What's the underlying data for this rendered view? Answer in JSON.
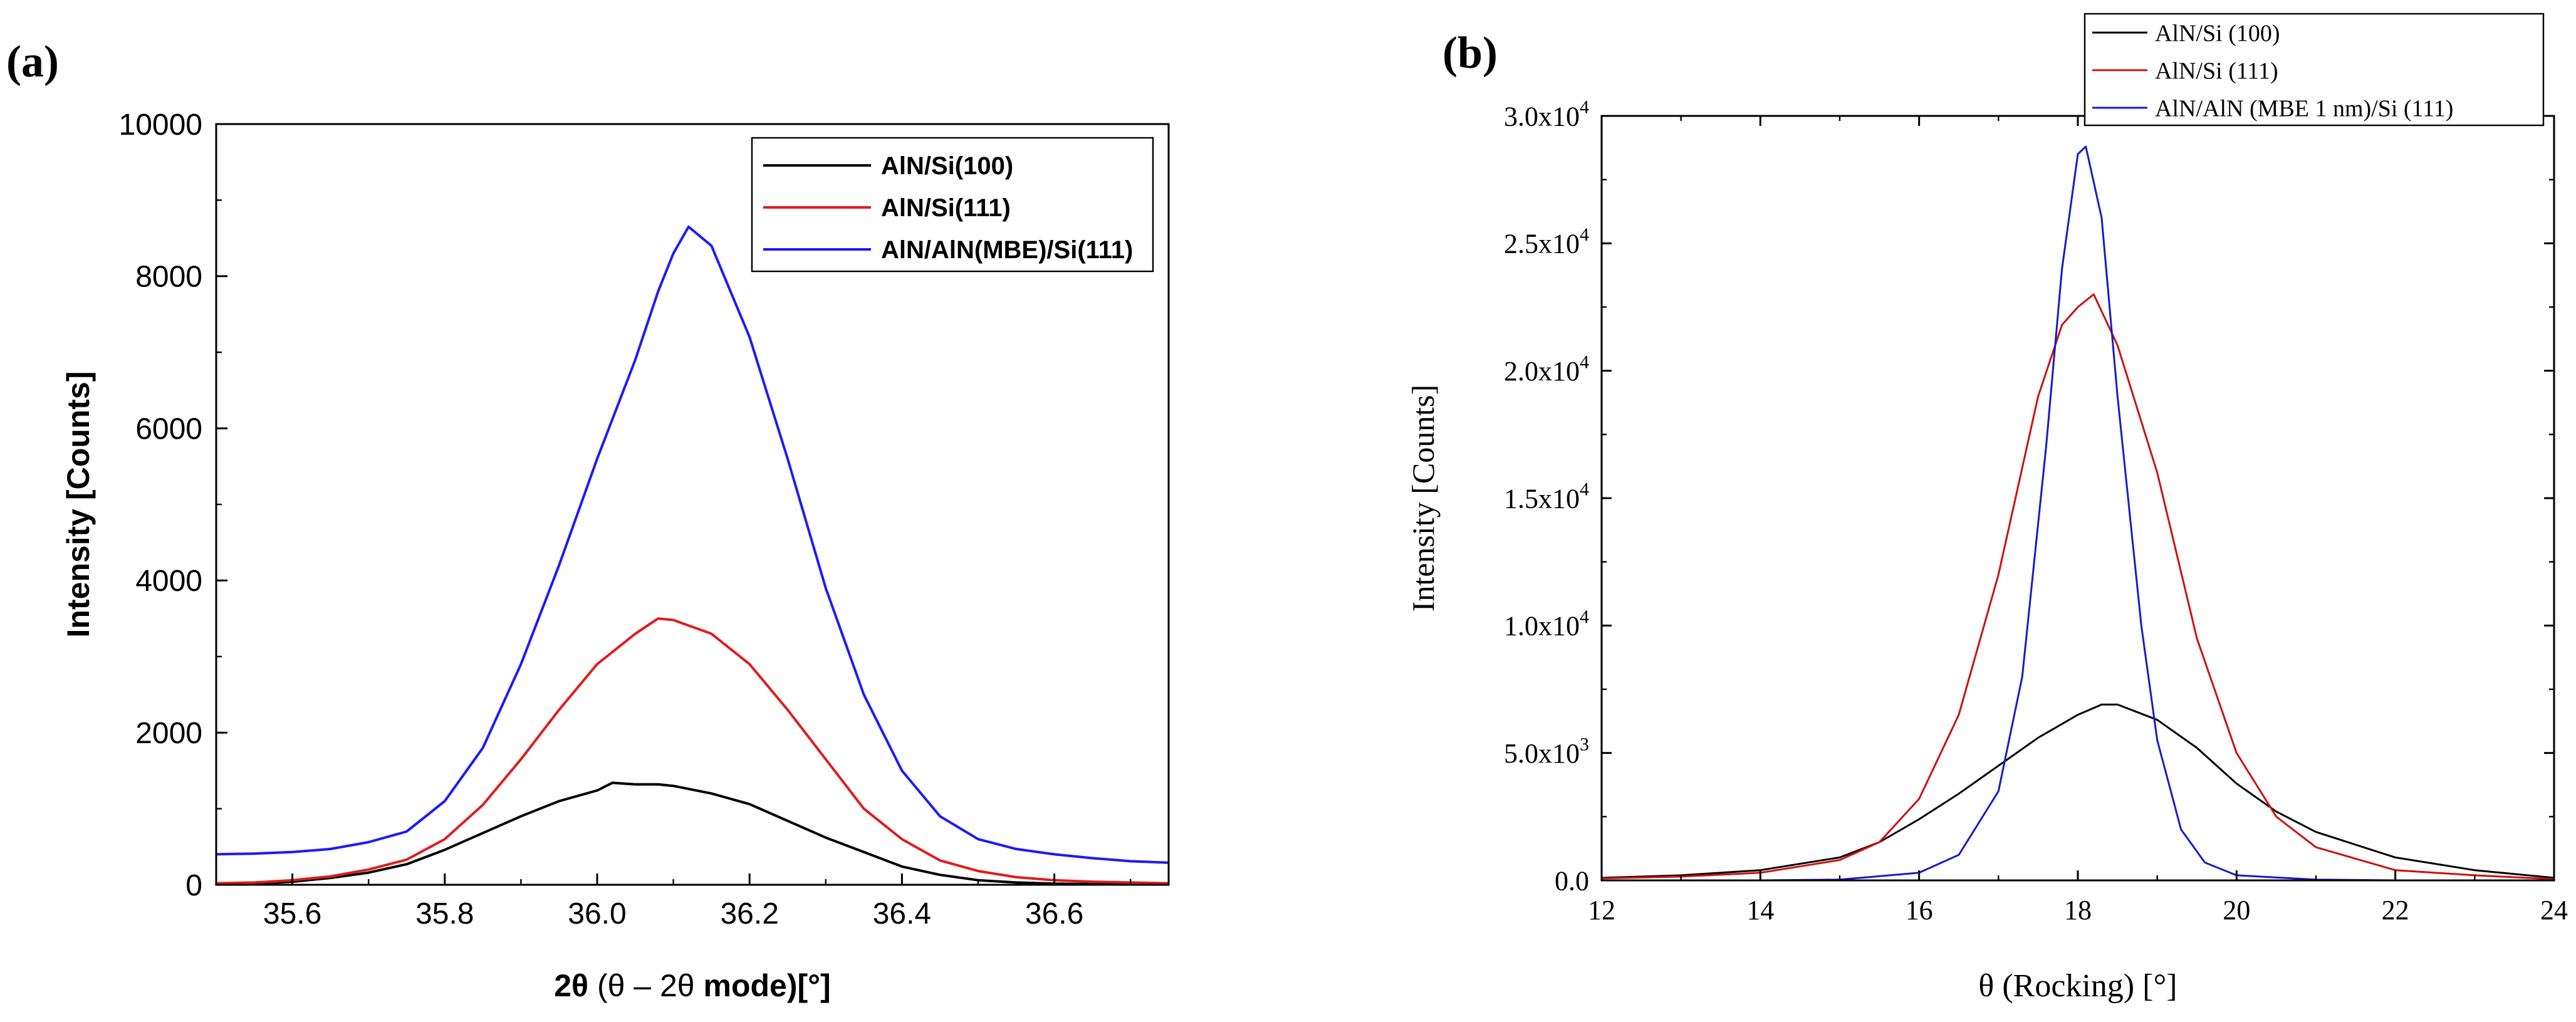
{
  "chart_data": [
    {
      "panel": "(a)",
      "type": "line",
      "xlabel_main": "2θ",
      "xlabel_mode": " (θ – 2θ",
      "xlabel_end": " mode)[°]",
      "ylabel": "Intensity [Counts]",
      "xlim": [
        35.5,
        36.75
      ],
      "ylim": [
        0,
        10000
      ],
      "xticks": [
        35.6,
        35.8,
        36.0,
        36.2,
        36.4,
        36.6
      ],
      "xtick_labels": [
        "35.6",
        "35.8",
        "36.0",
        "36.2",
        "36.4",
        "36.6"
      ],
      "yticks": [
        0,
        2000,
        4000,
        6000,
        8000,
        10000
      ],
      "ytick_labels": [
        "0",
        "2000",
        "4000",
        "6000",
        "8000",
        "10000"
      ],
      "legend_position": "top-right",
      "series": [
        {
          "name": "AlN/Si(100)",
          "color": "#000000",
          "x": [
            35.5,
            35.55,
            35.6,
            35.65,
            35.7,
            35.75,
            35.8,
            35.85,
            35.9,
            35.95,
            36.0,
            36.02,
            36.05,
            36.08,
            36.1,
            36.15,
            36.2,
            36.25,
            36.3,
            36.35,
            36.4,
            36.45,
            36.5,
            36.55,
            36.6,
            36.65,
            36.7,
            36.75
          ],
          "y": [
            10,
            15,
            40,
            90,
            160,
            270,
            460,
            680,
            900,
            1100,
            1240,
            1340,
            1320,
            1320,
            1300,
            1200,
            1060,
            840,
            620,
            430,
            240,
            130,
            60,
            30,
            15,
            10,
            5,
            5
          ]
        },
        {
          "name": "AlN/Si(111)",
          "color": "#e41a1a",
          "x": [
            35.5,
            35.55,
            35.6,
            35.65,
            35.7,
            35.75,
            35.8,
            35.85,
            35.9,
            35.95,
            36.0,
            36.05,
            36.08,
            36.1,
            36.15,
            36.2,
            36.25,
            36.3,
            36.35,
            36.4,
            36.45,
            36.5,
            36.55,
            36.6,
            36.65,
            36.7,
            36.75
          ],
          "y": [
            20,
            30,
            60,
            110,
            200,
            330,
            600,
            1050,
            1650,
            2300,
            2900,
            3300,
            3500,
            3480,
            3300,
            2900,
            2300,
            1650,
            1000,
            600,
            320,
            180,
            100,
            60,
            40,
            30,
            20
          ]
        },
        {
          "name": "AlN/AlN(MBE)/Si(111)",
          "color": "#1a1aff",
          "x": [
            35.5,
            35.55,
            35.6,
            35.65,
            35.7,
            35.75,
            35.8,
            35.85,
            35.9,
            35.95,
            36.0,
            36.05,
            36.08,
            36.1,
            36.12,
            36.15,
            36.2,
            36.25,
            36.3,
            36.35,
            36.4,
            36.45,
            36.5,
            36.55,
            36.6,
            36.65,
            36.7,
            36.75
          ],
          "y": [
            400,
            410,
            430,
            470,
            560,
            700,
            1100,
            1800,
            2900,
            4200,
            5600,
            6900,
            7800,
            8300,
            8650,
            8400,
            7200,
            5600,
            3900,
            2500,
            1500,
            900,
            600,
            470,
            400,
            350,
            310,
            290
          ]
        }
      ]
    },
    {
      "panel": "(b)",
      "type": "line",
      "xlabel": "θ (Rocking) [°]",
      "ylabel": "Intensity [Counts]",
      "xlim": [
        12,
        24
      ],
      "ylim": [
        0,
        30000
      ],
      "xticks": [
        12,
        14,
        16,
        18,
        20,
        22,
        24
      ],
      "xtick_labels": [
        "12",
        "14",
        "16",
        "18",
        "20",
        "22",
        "24"
      ],
      "yticks": [
        0,
        5000,
        10000,
        15000,
        20000,
        25000,
        30000
      ],
      "ytick_mantissas": [
        "0.0",
        "5.0x10",
        "1.0x10",
        "1.5x10",
        "2.0x10",
        "2.5x10",
        "3.0x10"
      ],
      "ytick_exponents": [
        "",
        "3",
        "4",
        "4",
        "4",
        "4",
        "4"
      ],
      "legend_position": "top-right",
      "series": [
        {
          "name": "AlN/Si (100)",
          "color": "#000000",
          "x": [
            12,
            13,
            14,
            15,
            15.5,
            16,
            16.5,
            17,
            17.5,
            18,
            18.3,
            18.5,
            19,
            19.5,
            20,
            20.5,
            21,
            22,
            23,
            24
          ],
          "y": [
            100,
            200,
            400,
            900,
            1500,
            2400,
            3400,
            4500,
            5600,
            6500,
            6900,
            6900,
            6300,
            5200,
            3800,
            2700,
            1900,
            900,
            400,
            100
          ]
        },
        {
          "name": "AlN/Si (111)",
          "color": "#cc1111",
          "x": [
            12,
            13,
            14,
            15,
            15.5,
            16,
            16.5,
            17,
            17.5,
            17.8,
            18,
            18.2,
            18.5,
            19,
            19.5,
            20,
            20.5,
            21,
            22,
            23,
            24
          ],
          "y": [
            80,
            150,
            300,
            800,
            1500,
            3200,
            6500,
            12000,
            19000,
            21800,
            22500,
            23000,
            21000,
            16000,
            9500,
            5000,
            2500,
            1300,
            400,
            200,
            50
          ]
        },
        {
          "name": "AlN/AlN (MBE   1 nm)/Si (111)",
          "color": "#1a1acc",
          "x": [
            12,
            14,
            15,
            16,
            16.5,
            17,
            17.3,
            17.6,
            17.8,
            18,
            18.1,
            18.3,
            18.5,
            18.8,
            19,
            19.3,
            19.6,
            20,
            21,
            22,
            24
          ],
          "y": [
            0,
            0,
            30,
            300,
            1000,
            3500,
            8000,
            17000,
            24000,
            28500,
            28800,
            26000,
            19000,
            10000,
            5500,
            2000,
            700,
            200,
            30,
            0,
            0
          ]
        }
      ]
    }
  ]
}
